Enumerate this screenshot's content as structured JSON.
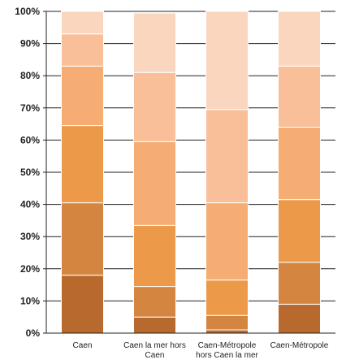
{
  "chart_data": {
    "type": "bar",
    "stacked": true,
    "percent": true,
    "categories": [
      [
        "Caen"
      ],
      [
        "Caen la mer hors",
        "Caen"
      ],
      [
        "Caen-Métropole",
        "hors Caen la mer"
      ],
      [
        "Caen-Métropole"
      ]
    ],
    "series": [
      {
        "values": [
          18,
          5,
          1,
          9
        ],
        "color": "#b86a2e"
      },
      {
        "values": [
          22.5,
          9.5,
          4.5,
          13
        ],
        "color": "#d48640"
      },
      {
        "values": [
          24,
          19,
          11,
          19.5
        ],
        "color": "#ec9a4a"
      },
      {
        "values": [
          18.5,
          26,
          24,
          22.5
        ],
        "color": "#f5ad73"
      },
      {
        "values": [
          10,
          21.5,
          29,
          19
        ],
        "color": "#f8bf98"
      },
      {
        "values": [
          7,
          18.5,
          30.5,
          17
        ],
        "color": "#fbd6bf"
      }
    ],
    "y_ticks": [
      "0%",
      "10%",
      "20%",
      "30%",
      "40%",
      "50%",
      "60%",
      "70%",
      "80%",
      "90%",
      "100%"
    ],
    "ylim": [
      0,
      100
    ],
    "grid": true,
    "legend": "none"
  }
}
